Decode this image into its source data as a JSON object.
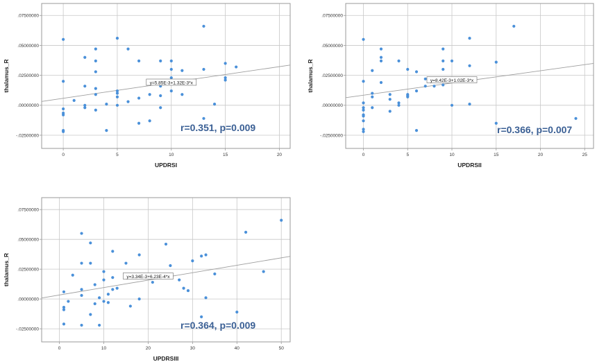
{
  "colors": {
    "point": "#4a90d9",
    "grid": "#c8c8c8",
    "frame": "#9a9a9a",
    "fit_line": "#9e9e9e",
    "stat_text": "#3a5f94"
  },
  "chart_data": [
    {
      "type": "scatter",
      "xlabel": "UPDRSI",
      "ylabel": "thalamus_R",
      "xlim": [
        -2,
        21
      ],
      "ylim": [
        -0.036,
        0.085
      ],
      "x_ticks": [
        "0",
        "5",
        "10",
        "15",
        "20"
      ],
      "x_tick_values": [
        0,
        5,
        10,
        15,
        20
      ],
      "y_ticks": [
        ".07500000",
        ".05000000",
        ".02500000",
        ".00000000",
        "-.02500000"
      ],
      "y_tick_values": [
        0.075,
        0.05,
        0.025,
        0.0,
        -0.025
      ],
      "grid": true,
      "fit": {
        "intercept": 0.00585,
        "slope": 0.00132
      },
      "fit_label": "y=5.85E-3+1.32E-3*x",
      "fit_label_at": [
        10,
        0.019
      ],
      "stat_label": "r=0.351, p=0.009",
      "points": [
        [
          0,
          0.055
        ],
        [
          0,
          0.02
        ],
        [
          0,
          -0.003
        ],
        [
          0,
          -0.0065
        ],
        [
          0,
          -0.008
        ],
        [
          0,
          -0.021
        ],
        [
          0,
          -0.022
        ],
        [
          1,
          0.004
        ],
        [
          2,
          0.04
        ],
        [
          2,
          0.016
        ],
        [
          2,
          0.0
        ],
        [
          2,
          -0.002
        ],
        [
          3,
          0.047
        ],
        [
          3,
          0.037
        ],
        [
          3,
          0.028
        ],
        [
          3,
          0.014
        ],
        [
          3,
          0.009
        ],
        [
          3,
          -0.004
        ],
        [
          4,
          0.001
        ],
        [
          4,
          -0.021
        ],
        [
          5,
          0.056
        ],
        [
          5,
          0.012
        ],
        [
          5,
          0.01
        ],
        [
          5,
          0.007
        ],
        [
          5,
          0.0
        ],
        [
          6,
          0.047
        ],
        [
          6,
          0.003
        ],
        [
          7,
          0.037
        ],
        [
          7,
          0.006
        ],
        [
          7,
          -0.015
        ],
        [
          8,
          0.009
        ],
        [
          8,
          -0.013
        ],
        [
          9,
          0.037
        ],
        [
          9,
          0.016
        ],
        [
          9,
          0.008
        ],
        [
          9,
          -0.002
        ],
        [
          10,
          0.037
        ],
        [
          10,
          0.03
        ],
        [
          10,
          0.023
        ],
        [
          10,
          0.02
        ],
        [
          10,
          0.012
        ],
        [
          11,
          0.029
        ],
        [
          11,
          0.009
        ],
        [
          13,
          0.066
        ],
        [
          13,
          0.03
        ],
        [
          13,
          -0.011
        ],
        [
          14,
          0.001
        ],
        [
          15,
          0.035
        ],
        [
          15,
          0.023
        ],
        [
          15,
          0.021
        ],
        [
          16,
          0.032
        ]
      ]
    },
    {
      "type": "scatter",
      "xlabel": "UPDRSII",
      "ylabel": "thalamus_R",
      "xlim": [
        -2,
        26
      ],
      "ylim": [
        -0.036,
        0.085
      ],
      "x_ticks": [
        "0",
        "5",
        "10",
        "15",
        "20",
        "25"
      ],
      "x_tick_values": [
        0,
        5,
        10,
        15,
        20,
        25
      ],
      "y_ticks": [
        ".07500000",
        ".05000000",
        ".02500000",
        ".00000000",
        "-.02500000"
      ],
      "y_tick_values": [
        0.075,
        0.05,
        0.025,
        0.0,
        -0.025
      ],
      "grid": true,
      "fit": {
        "intercept": 0.00842,
        "slope": 0.00102
      },
      "fit_label": "y=8.42E-3+1.02E-3*x",
      "fit_label_at": [
        10,
        0.021
      ],
      "stat_label": "r=0.366, p=0.007",
      "points": [
        [
          0,
          0.055
        ],
        [
          0,
          0.02
        ],
        [
          0,
          0.002
        ],
        [
          0,
          -0.002
        ],
        [
          0,
          -0.004
        ],
        [
          0,
          -0.008
        ],
        [
          0,
          -0.009
        ],
        [
          0,
          -0.013
        ],
        [
          0,
          -0.02
        ],
        [
          0,
          -0.022
        ],
        [
          1,
          0.029
        ],
        [
          1,
          0.01
        ],
        [
          1,
          0.007
        ],
        [
          1,
          -0.002
        ],
        [
          2,
          0.047
        ],
        [
          2,
          0.04
        ],
        [
          2,
          0.037
        ],
        [
          2,
          0.019
        ],
        [
          3,
          0.009
        ],
        [
          3,
          0.005
        ],
        [
          3,
          -0.005
        ],
        [
          4,
          0.037
        ],
        [
          4,
          0.002
        ],
        [
          4,
          0.0
        ],
        [
          5,
          0.03
        ],
        [
          5,
          0.009
        ],
        [
          5,
          0.008
        ],
        [
          5,
          0.007
        ],
        [
          6,
          0.028
        ],
        [
          6,
          0.012
        ],
        [
          6,
          -0.021
        ],
        [
          7,
          0.022
        ],
        [
          7,
          0.016
        ],
        [
          8,
          0.016
        ],
        [
          9,
          0.047
        ],
        [
          9,
          0.037
        ],
        [
          9,
          0.03
        ],
        [
          9,
          0.022
        ],
        [
          9,
          0.017
        ],
        [
          10,
          0.037
        ],
        [
          10,
          0.0
        ],
        [
          12,
          0.056
        ],
        [
          12,
          0.033
        ],
        [
          12,
          0.001
        ],
        [
          15,
          0.036
        ],
        [
          15,
          -0.015
        ],
        [
          17,
          0.066
        ],
        [
          24,
          -0.011
        ]
      ]
    },
    {
      "type": "scatter",
      "xlabel": "UPDRSIII",
      "ylabel": "thalamus_R",
      "xlim": [
        -4,
        52
      ],
      "ylim": [
        -0.036,
        0.085
      ],
      "x_ticks": [
        "0",
        "10",
        "20",
        "30",
        "40",
        "50"
      ],
      "x_tick_values": [
        0,
        10,
        20,
        30,
        40,
        50
      ],
      "y_ticks": [
        ".07500000",
        ".05000000",
        ".02500000",
        ".00000000",
        "-.02500000"
      ],
      "y_tick_values": [
        0.075,
        0.05,
        0.025,
        0.0,
        -0.025
      ],
      "grid": true,
      "fit": {
        "intercept": 0.00334,
        "slope": 0.000623
      },
      "fit_label": "y=3.34E-3+6.23E-4*x",
      "fit_label_at": [
        20,
        0.019
      ],
      "stat_label": "r=0.364, p=0.009",
      "points": [
        [
          1,
          0.006
        ],
        [
          1,
          -0.007
        ],
        [
          1,
          -0.009
        ],
        [
          1,
          -0.021
        ],
        [
          2,
          -0.002
        ],
        [
          3,
          0.02
        ],
        [
          5,
          0.055
        ],
        [
          5,
          0.03
        ],
        [
          5,
          0.008
        ],
        [
          5,
          0.003
        ],
        [
          5,
          -0.022
        ],
        [
          7,
          0.047
        ],
        [
          7,
          0.03
        ],
        [
          7,
          -0.013
        ],
        [
          8,
          0.012
        ],
        [
          8,
          -0.004
        ],
        [
          9,
          0.001
        ],
        [
          9,
          -0.022
        ],
        [
          10,
          0.023
        ],
        [
          10,
          0.016
        ],
        [
          10,
          -0.002
        ],
        [
          11,
          0.004
        ],
        [
          11,
          -0.003
        ],
        [
          12,
          0.04
        ],
        [
          12,
          0.018
        ],
        [
          12,
          0.008
        ],
        [
          13,
          0.009
        ],
        [
          15,
          0.03
        ],
        [
          16,
          -0.006
        ],
        [
          18,
          0.037
        ],
        [
          18,
          0.0
        ],
        [
          21,
          0.014
        ],
        [
          24,
          0.046
        ],
        [
          25,
          0.028
        ],
        [
          27,
          0.016
        ],
        [
          28,
          0.009
        ],
        [
          29,
          0.007
        ],
        [
          30,
          0.032
        ],
        [
          32,
          0.036
        ],
        [
          32,
          -0.015
        ],
        [
          33,
          0.037
        ],
        [
          33,
          0.001
        ],
        [
          35,
          0.021
        ],
        [
          40,
          -0.011
        ],
        [
          42,
          0.056
        ],
        [
          46,
          0.023
        ],
        [
          50,
          0.066
        ]
      ]
    }
  ]
}
